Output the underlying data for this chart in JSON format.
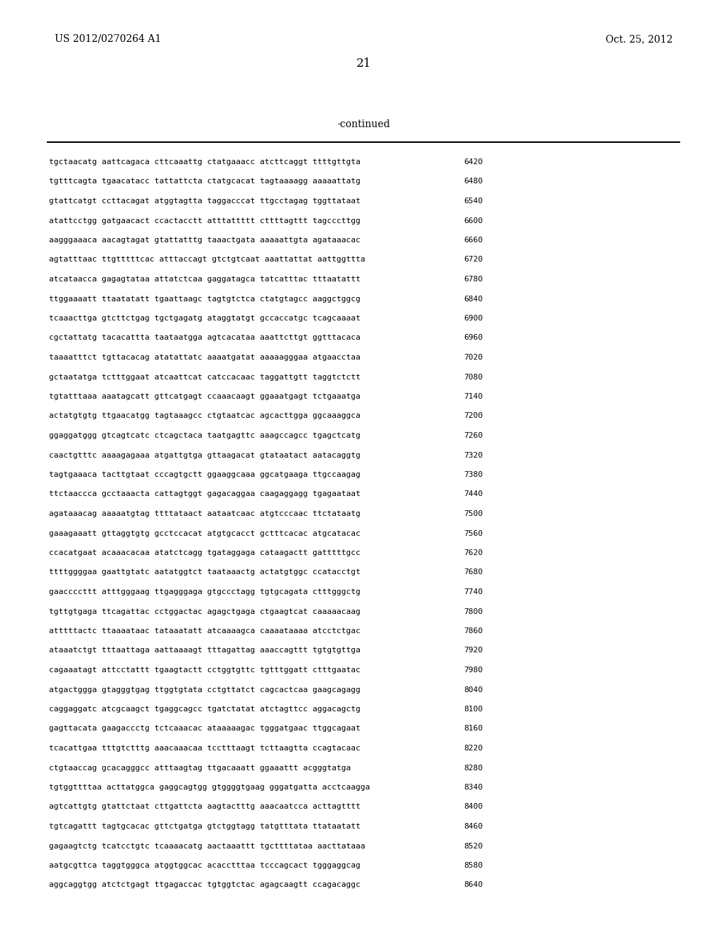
{
  "header_left": "US 2012/0270264 A1",
  "header_right": "Oct. 25, 2012",
  "page_number": "21",
  "continued_label": "-continued",
  "background_color": "#ffffff",
  "text_color": "#000000",
  "font_size_header": 10,
  "font_size_page": 12,
  "font_size_continued": 10,
  "font_size_sequence": 8.0,
  "sequence_lines": [
    [
      "tgctaacatg",
      "aattcagaca",
      "cttcaaattg",
      "ctatgaaacc",
      "atcttcaggt",
      "ttttgttgta",
      "6420"
    ],
    [
      "tgtttcagta",
      "tgaacatacc",
      "tattattcta",
      "ctatgcacat",
      "tagtaaaagg",
      "aaaaattatg",
      "6480"
    ],
    [
      "gtattcatgt",
      "ccttacagat",
      "atggtagtta",
      "taggacccat",
      "ttgcctagag",
      "tggttataat",
      "6540"
    ],
    [
      "atattcctgg",
      "gatgaacact",
      "ccactacctt",
      "atttattttt",
      "cttttagttt",
      "tagcccttgg",
      "6600"
    ],
    [
      "aagggaaaca",
      "aacagtagat",
      "gtattatttg",
      "taaactgata",
      "aaaaattgta",
      "agataaacac",
      "6660"
    ],
    [
      "agtatttaac",
      "ttgtttttcac",
      "atttaccagt",
      "gtctgtcaat",
      "aaattattat",
      "aattggttta",
      "6720"
    ],
    [
      "atcataacca",
      "gagagtataa",
      "attatctcaa",
      "gaggatagca",
      "tatcatttac",
      "tttaatattt",
      "6780"
    ],
    [
      "ttggaaaatt",
      "ttaatatatt",
      "tgaattaagc",
      "tagtgtctca",
      "ctatgtagcc",
      "aaggctggcg",
      "6840"
    ],
    [
      "tcaaacttga",
      "gtcttctgag",
      "tgctgagatg",
      "ataggtatgt",
      "gccaccatgc",
      "tcagcaaaat",
      "6900"
    ],
    [
      "cgctattatg",
      "tacacattta",
      "taataatgga",
      "agtcacataa",
      "aaattcttgt",
      "ggtttacaca",
      "6960"
    ],
    [
      "taaaatttct",
      "tgttacacag",
      "atatattatc",
      "aaaatgatat",
      "aaaaagggaa",
      "atgaacctaa",
      "7020"
    ],
    [
      "gctaatatga",
      "tctttggaat",
      "atcaattcat",
      "catccacaac",
      "taggattgtt",
      "taggtctctt",
      "7080"
    ],
    [
      "tgtatttaaa",
      "aaatagcatt",
      "gttcatgagt",
      "ccaaacaagt",
      "ggaaatgagt",
      "tctgaaatga",
      "7140"
    ],
    [
      "actatgtgtg",
      "ttgaacatgg",
      "tagtaaagcc",
      "ctgtaatcac",
      "agcacttgga",
      "ggcaaaggca",
      "7200"
    ],
    [
      "ggaggatggg",
      "gtcagtcatc",
      "ctcagctaca",
      "taatgagttc",
      "aaagccagcc",
      "tgagctcatg",
      "7260"
    ],
    [
      "caactgtttc",
      "aaaagagaaa",
      "atgattgtga",
      "gttaagacat",
      "gtataatact",
      "aatacaggtg",
      "7320"
    ],
    [
      "tagtgaaaca",
      "tacttgtaat",
      "cccagtgctt",
      "ggaaggcaaa",
      "ggcatgaaga",
      "ttgccaagag",
      "7380"
    ],
    [
      "ttctaaccca",
      "gcctaaacta",
      "cattagtggt",
      "gagacaggaa",
      "caagaggagg",
      "tgagaataat",
      "7440"
    ],
    [
      "agataaacag",
      "aaaaatgtag",
      "ttttataact",
      "aataatcaac",
      "atgtcccaac",
      "ttctataatg",
      "7500"
    ],
    [
      "gaaagaaatt",
      "gttaggtgtg",
      "gcctccacat",
      "atgtgcacct",
      "gctttcacac",
      "atgcatacac",
      "7560"
    ],
    [
      "ccacatgaat",
      "acaaacacaa",
      "atatctcagg",
      "tgataggaga",
      "cataagactt",
      "gatttttgcc",
      "7620"
    ],
    [
      "ttttggggaa",
      "gaattgtatc",
      "aatatggtct",
      "taataaactg",
      "actatgtggc",
      "ccatacctgt",
      "7680"
    ],
    [
      "gaaccccttt",
      "atttgggaag",
      "ttgagggaga",
      "gtgccctagg",
      "tgtgcagata",
      "ctttgggctg",
      "7740"
    ],
    [
      "tgttgtgaga",
      "ttcagattac",
      "cctggactac",
      "agagctgaga",
      "ctgaagtcat",
      "caaaaacaag",
      "7800"
    ],
    [
      "atttttactc",
      "ttaaaataac",
      "tataaatatt",
      "atcaaaagca",
      "caaaataaaa",
      "atcctctgac",
      "7860"
    ],
    [
      "ataaatctgt",
      "tttaattaga",
      "aattaaaagt",
      "tttagattag",
      "aaaccagttt",
      "tgtgtgttga",
      "7920"
    ],
    [
      "cagaaatagt",
      "attcctattt",
      "tgaagtactt",
      "cctggtgttc",
      "tgtttggatt",
      "ctttgaatac",
      "7980"
    ],
    [
      "atgactggga",
      "gtagggtgag",
      "ttggtgtata",
      "cctgttatct",
      "cagcactcaa",
      "gaagcagagg",
      "8040"
    ],
    [
      "caggaggatc",
      "atcgcaagct",
      "tgaggcagcc",
      "tgatctatat",
      "atctagttcc",
      "aggacagctg",
      "8100"
    ],
    [
      "gagttacata",
      "gaagaccctg",
      "tctcaaacac",
      "ataaaaagac",
      "tgggatgaac",
      "ttggcagaat",
      "8160"
    ],
    [
      "tcacattgaa",
      "tttgtctttg",
      "aaacaaacaa",
      "tcctttaagt",
      "tcttaagtta",
      "ccagtacaac",
      "8220"
    ],
    [
      "ctgtaaccag",
      "gcacagggcc",
      "atttaagtag",
      "ttgacaaatt",
      "ggaaattt",
      "acgggtatga",
      "8280"
    ],
    [
      "tgtggttttaa",
      "acttatggca",
      "gaggcagtgg",
      "gtggggtgaag",
      "gggatgatta",
      "acctcaagga",
      "8340"
    ],
    [
      "agtcattgtg",
      "gtattctaat",
      "cttgattcta",
      "aagtactttg",
      "aaacaatcca",
      "acttagtttt",
      "8400"
    ],
    [
      "tgtcagattt",
      "tagtgcacac",
      "gttctgatga",
      "gtctggtagg",
      "tatgtttata",
      "ttataatatt",
      "8460"
    ],
    [
      "gagaagtctg",
      "tcatcctgtc",
      "tcaaaacatg",
      "aactaaattt",
      "tgcttttataa",
      "aacttataaa",
      "8520"
    ],
    [
      "aatgcgttca",
      "taggtgggca",
      "atggtggcac",
      "acacctttaa",
      "tcccagcact",
      "tgggaggcag",
      "8580"
    ],
    [
      "aggcaggtgg",
      "atctctgagt",
      "ttgagaccac",
      "tgtggtctac",
      "agagcaagtt",
      "ccagacaggc",
      "8640"
    ]
  ]
}
